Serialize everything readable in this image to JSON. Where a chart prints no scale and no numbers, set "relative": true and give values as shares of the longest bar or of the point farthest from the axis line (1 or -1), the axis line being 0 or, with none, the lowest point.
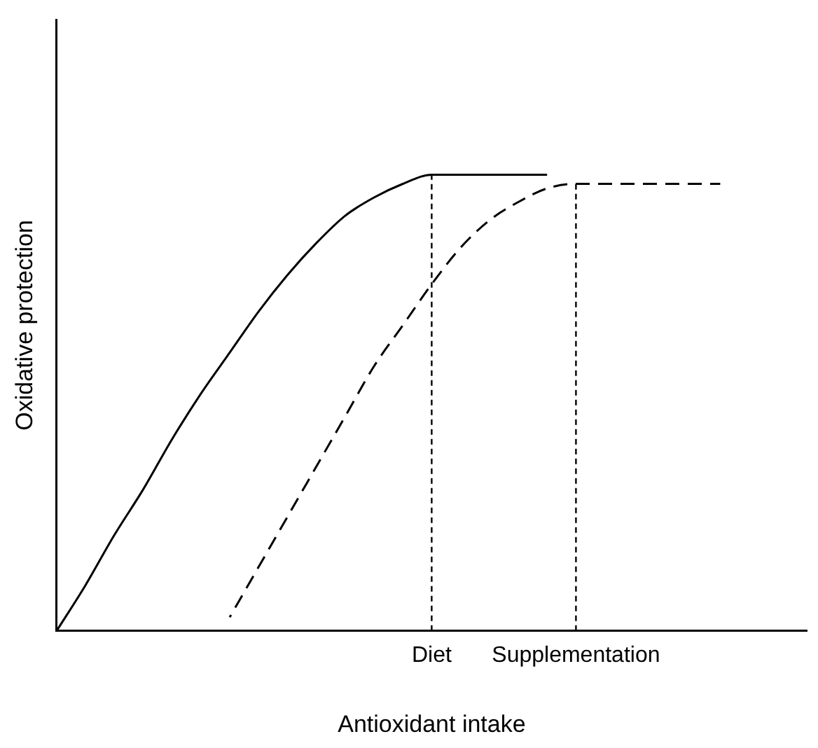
{
  "chart_data": {
    "type": "line",
    "xlabel": "Antioxidant intake",
    "ylabel": "Oxidative protection",
    "relative": true,
    "categories": [
      null,
      null,
      null,
      null,
      null,
      null,
      null,
      null,
      null,
      null,
      null,
      null,
      null,
      "Diet",
      null,
      null,
      null,
      null,
      "Supplementation",
      null,
      null,
      null,
      null,
      null,
      null,
      null,
      null
    ],
    "series": [
      {
        "color": "#000000",
        "line_style": "solid",
        "values": [
          0,
          0.1,
          0.21,
          0.31,
          0.42,
          0.52,
          0.61,
          0.7,
          0.78,
          0.85,
          0.91,
          0.95,
          0.98,
          1,
          1,
          1,
          1,
          1,
          null,
          null,
          null,
          null,
          null,
          null,
          null,
          null,
          null
        ]
      },
      {
        "color": "#000000",
        "line_style": "dashed",
        "values": [
          null,
          null,
          null,
          null,
          null,
          null,
          0.03,
          0.14,
          0.25,
          0.36,
          0.47,
          0.58,
          0.67,
          0.76,
          0.84,
          0.9,
          0.94,
          0.97,
          0.98,
          0.98,
          0.98,
          0.98,
          0.98,
          0.98,
          null,
          null,
          null
        ]
      }
    ],
    "ref_lines": [
      {
        "axis": "x",
        "value": "Diet",
        "color": "#000000",
        "line_style": "dashed"
      },
      {
        "axis": "x",
        "value": "Supplementation",
        "color": "#000000",
        "line_style": "dashed"
      }
    ]
  }
}
